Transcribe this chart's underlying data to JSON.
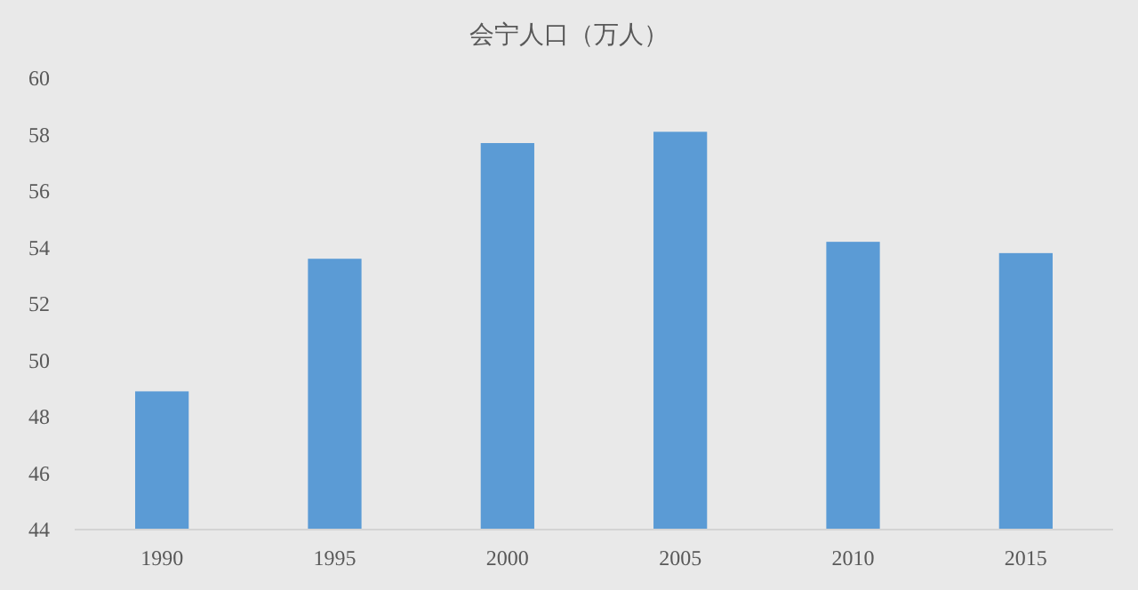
{
  "chart_data": {
    "type": "bar",
    "title": "会宁人口（万人）",
    "categories": [
      "1990",
      "1995",
      "2000",
      "2005",
      "2010",
      "2015"
    ],
    "values": [
      48.9,
      53.6,
      57.7,
      58.1,
      54.2,
      53.8
    ],
    "color": "#5b9bd5",
    "ylim": [
      44,
      60
    ],
    "yticks": [
      44,
      46,
      48,
      50,
      52,
      54,
      56,
      58,
      60
    ],
    "grid": false
  }
}
